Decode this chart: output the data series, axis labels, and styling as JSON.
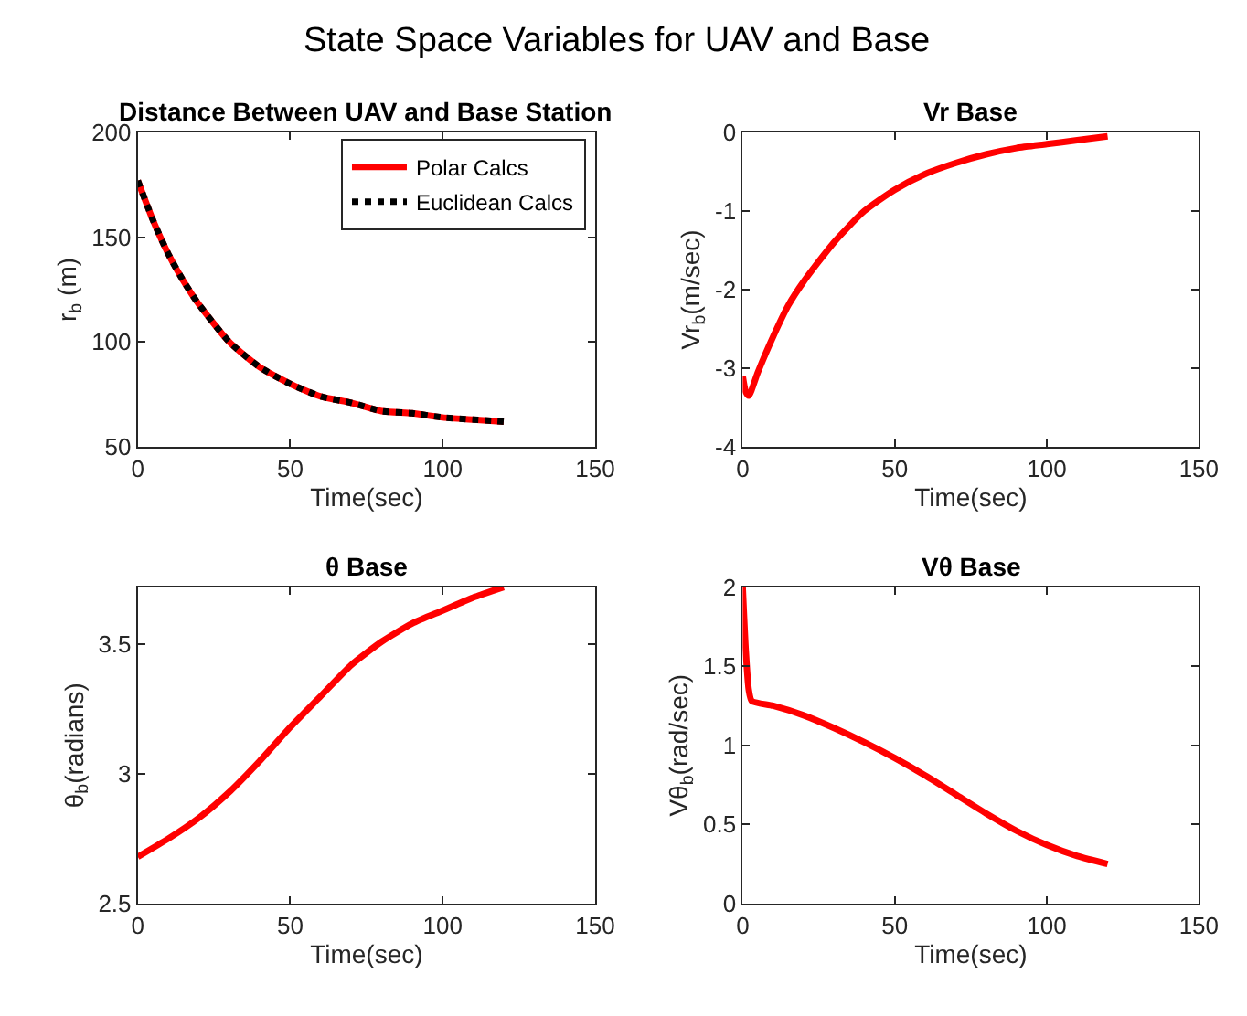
{
  "chart_data": [
    {
      "type": "line",
      "title": "Distance Between UAV and Base Station",
      "annotations": [
        "State Space Variables for UAV and Base"
      ],
      "xlabel": "Time(sec)",
      "ylabel": "r$_{b}$ (m)",
      "xlim": [
        0,
        150
      ],
      "xticks": [
        0,
        50,
        100,
        150
      ],
      "ylim": [
        50,
        200
      ],
      "yticks": [
        50,
        100,
        150,
        200
      ],
      "legend": "top right",
      "x": [
        0,
        5,
        10,
        15,
        20,
        30,
        40,
        50,
        60,
        70,
        80,
        90,
        100,
        110,
        120
      ],
      "series": [
        {
          "name": "Polar Calcs",
          "color": "#ff0000",
          "line_style": "solid",
          "values": [
            177,
            158,
            142,
            129,
            118,
            100,
            88,
            80,
            74,
            71,
            67,
            66,
            64,
            63,
            62
          ]
        },
        {
          "name": "Euclidean Calcs",
          "color": "#000000",
          "line_style": "dotted",
          "values": [
            177,
            158,
            142,
            129,
            118,
            100,
            88,
            80,
            74,
            71,
            67,
            66,
            64,
            63,
            62
          ]
        }
      ]
    },
    {
      "type": "line",
      "title": "Vr Base",
      "xlabel": "Time(sec)",
      "ylabel": "Vr$_{b}$(m/sec)",
      "xlim": [
        0,
        150
      ],
      "xticks": [
        0,
        50,
        100,
        150
      ],
      "ylim": [
        -4,
        0
      ],
      "yticks": [
        -4,
        -3,
        -2,
        -1,
        0
      ],
      "x": [
        0,
        1,
        2,
        5,
        10,
        15,
        20,
        30,
        40,
        50,
        60,
        70,
        80,
        90,
        100,
        110,
        120
      ],
      "series": [
        {
          "color": "#ff0000",
          "values": [
            -3.1,
            -3.3,
            -3.35,
            -3.05,
            -2.6,
            -2.2,
            -1.9,
            -1.4,
            -1.0,
            -0.73,
            -0.53,
            -0.39,
            -0.28,
            -0.2,
            -0.15,
            -0.1,
            -0.05
          ]
        }
      ]
    },
    {
      "type": "line",
      "title": "θ Base",
      "xlabel": "Time(sec)",
      "ylabel": "θ$_{b}$(radians)",
      "xlim": [
        0,
        150
      ],
      "xticks": [
        0,
        50,
        100,
        150
      ],
      "ylim": [
        2.5,
        3.72
      ],
      "yticks": [
        2.5,
        3,
        3.5
      ],
      "x": [
        0,
        10,
        20,
        30,
        40,
        50,
        60,
        70,
        80,
        90,
        100,
        110,
        120
      ],
      "series": [
        {
          "color": "#ff0000",
          "values": [
            2.68,
            2.75,
            2.83,
            2.93,
            3.05,
            3.18,
            3.3,
            3.42,
            3.51,
            3.58,
            3.63,
            3.68,
            3.72
          ]
        }
      ]
    },
    {
      "type": "line",
      "title": "Vθ Base",
      "xlabel": "Time(sec)",
      "ylabel": "Vθ$_{b}$(rad/sec)",
      "xlim": [
        0,
        150
      ],
      "xticks": [
        0,
        50,
        100,
        150
      ],
      "ylim": [
        0,
        2
      ],
      "yticks": [
        0,
        0.5,
        1,
        1.5,
        2
      ],
      "x": [
        0,
        1,
        2,
        3,
        10,
        20,
        30,
        40,
        50,
        60,
        70,
        80,
        90,
        100,
        110,
        120
      ],
      "series": [
        {
          "color": "#ff0000",
          "values": [
            2.0,
            1.6,
            1.35,
            1.28,
            1.25,
            1.19,
            1.11,
            1.02,
            0.92,
            0.81,
            0.69,
            0.57,
            0.46,
            0.37,
            0.3,
            0.25
          ]
        }
      ]
    }
  ]
}
